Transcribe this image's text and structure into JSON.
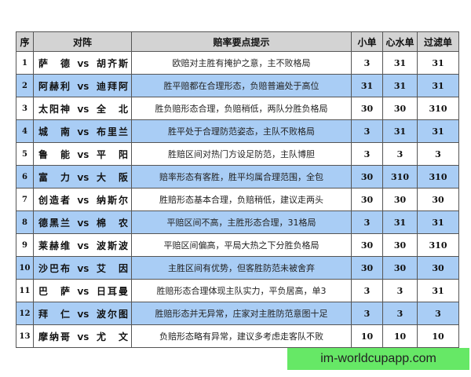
{
  "headers": [
    "序",
    "对阵",
    "赔率要点提示",
    "小单",
    "心水单",
    "过滤单"
  ],
  "vs_label": "VS",
  "rows": [
    {
      "idx": "1",
      "home": "萨德",
      "away": "胡齐斯",
      "tip": "欧赔对主胜有掩护之意，主不败格局",
      "small": "3",
      "heart": "31",
      "filter": "31"
    },
    {
      "idx": "2",
      "home": "阿赫利",
      "away": "迪拜阿",
      "tip": "胜平赔都在合理形态，负赔普遍处于高位",
      "small": "31",
      "heart": "31",
      "filter": "31"
    },
    {
      "idx": "3",
      "home": "太阳神",
      "away": "全北",
      "tip": "胜负赔形态合理，负赔稍低，两队分胜负格局",
      "small": "30",
      "heart": "30",
      "filter": "310"
    },
    {
      "idx": "4",
      "home": "城南",
      "away": "布里兰",
      "tip": "胜平处于合理防范姿态，主队不败格局",
      "small": "3",
      "heart": "31",
      "filter": "31"
    },
    {
      "idx": "5",
      "home": "鲁能",
      "away": "平阳",
      "tip": "胜赔区间对热门方设足防范，主队博胆",
      "small": "3",
      "heart": "3",
      "filter": "3"
    },
    {
      "idx": "6",
      "home": "富力",
      "away": "大阪",
      "tip": "赔率形态有客胜，胜平均属合理范围，全包",
      "small": "30",
      "heart": "310",
      "filter": "310"
    },
    {
      "idx": "7",
      "home": "创造者",
      "away": "纳斯尔",
      "tip": "胜赔形态基本合理，负赔稍低，建议走两头",
      "small": "30",
      "heart": "30",
      "filter": "30"
    },
    {
      "idx": "8",
      "home": "德黑兰",
      "away": "棉农",
      "tip": "平赔区间不高，主胜形态合理，31格局",
      "small": "3",
      "heart": "31",
      "filter": "31"
    },
    {
      "idx": "9",
      "home": "莱赫维",
      "away": "波斯波",
      "tip": "平赔区间偏高，平局大热之下分胜负格局",
      "small": "30",
      "heart": "30",
      "filter": "310"
    },
    {
      "idx": "10",
      "home": "沙巴布",
      "away": "艾因",
      "tip": "主胜区间有优势，但客胜防范未被舍弃",
      "small": "30",
      "heart": "30",
      "filter": "30"
    },
    {
      "idx": "11",
      "home": "巴萨",
      "away": "日耳曼",
      "tip": "胜赔形态合理体现主队实力，平负居高，单3",
      "small": "3",
      "heart": "3",
      "filter": "31"
    },
    {
      "idx": "12",
      "home": "拜仁",
      "away": "波尔图",
      "tip": "胜赔形态并无异常，庄家对主胜防范意图十足",
      "small": "3",
      "heart": "3",
      "filter": "3"
    },
    {
      "idx": "13",
      "home": "摩纳哥",
      "away": "尤文",
      "tip": "负赔形态略有异常，建议多考虑走客队不败",
      "small": "10",
      "heart": "10",
      "filter": "10"
    }
  ],
  "watermark": "im-worldcupapp.com",
  "colors": {
    "header_bg": "#d3d3d3",
    "alt_row_bg": "#a9cdf5",
    "watermark_bg": "#66e866"
  }
}
